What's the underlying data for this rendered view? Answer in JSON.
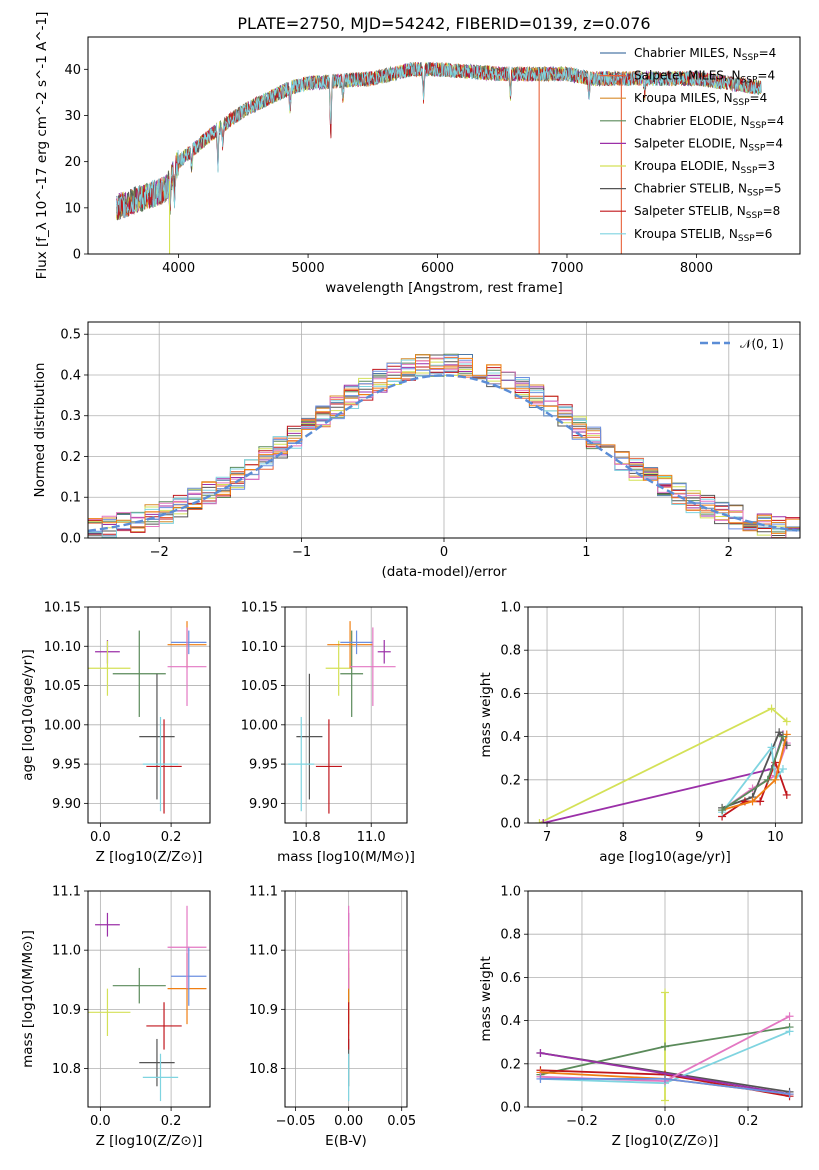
{
  "figure": {
    "title": "PLATE=2750, MJD=54242, FIBERID=0139, z=0.076",
    "colors": {
      "Chabrier MILES": "#4e79a7",
      "Salpeter MILES": "#e8623a",
      "Kroupa MILES": "#d98b2b",
      "Chabrier ELODIE": "#5a8a5a",
      "Salpeter ELODIE": "#9b30a8",
      "Kroupa ELODIE": "#d4e157",
      "Chabrier STELIB": "#555555",
      "Salpeter STELIB": "#c0161c",
      "Kroupa STELIB": "#7fd4e0",
      "normal_curve": "#5b8dd6",
      "pink_extra": "#e377c2",
      "blue_extra": "#6b8fe0",
      "orange_extra": "#f07f12"
    }
  },
  "chart_data": [
    {
      "id": "spectrum",
      "type": "line",
      "title": "PLATE=2750, MJD=54242, FIBERID=0139, z=0.076",
      "xlabel": "wavelength [Angstrom, rest frame]",
      "ylabel": "Flux [f_λ 10^-17 erg cm^-2 s^-1 A^-1]",
      "xlim": [
        3300,
        8800
      ],
      "ylim": [
        0,
        47
      ],
      "xticks": [
        4000,
        5000,
        6000,
        7000,
        8000
      ],
      "yticks": [
        0,
        10,
        20,
        30,
        40
      ],
      "grid": false,
      "legend_position": "top-right",
      "legend": [
        {
          "name": "Chabrier MILES",
          "sub": "SSP",
          "n": "4"
        },
        {
          "name": "Salpeter MILES",
          "sub": "SSP",
          "n": "4"
        },
        {
          "name": "Kroupa MILES",
          "sub": "SSP",
          "n": "4"
        },
        {
          "name": "Chabrier ELODIE",
          "sub": "SSP",
          "n": "4"
        },
        {
          "name": "Salpeter ELODIE",
          "sub": "SSP",
          "n": "4"
        },
        {
          "name": "Kroupa ELODIE",
          "sub": "SSP",
          "n": "3"
        },
        {
          "name": "Chabrier STELIB",
          "sub": "SSP",
          "n": "5"
        },
        {
          "name": "Salpeter STELIB",
          "sub": "SSP",
          "n": "8"
        },
        {
          "name": "Kroupa STELIB",
          "sub": "SSP",
          "n": "6"
        }
      ],
      "continuum": {
        "x": [
          3520,
          3700,
          3900,
          4000,
          4300,
          4500,
          4860,
          5000,
          5500,
          5800,
          6000,
          6500,
          7000,
          7200,
          7500,
          8000,
          8500
        ],
        "y": [
          10,
          12,
          14,
          20,
          27,
          31,
          36,
          37,
          38,
          40,
          40,
          39,
          39,
          38,
          38,
          38,
          36
        ]
      },
      "absorption_lines": [
        {
          "x": 3934,
          "depth": 6
        },
        {
          "x": 3968,
          "depth": 6
        },
        {
          "x": 4101,
          "depth": 4
        },
        {
          "x": 4304,
          "depth": 8
        },
        {
          "x": 4340,
          "depth": 4
        },
        {
          "x": 4861,
          "depth": 5
        },
        {
          "x": 5175,
          "depth": 12
        },
        {
          "x": 5270,
          "depth": 4
        },
        {
          "x": 5892,
          "depth": 6
        },
        {
          "x": 6563,
          "depth": 5
        },
        {
          "x": 7170,
          "depth": 4
        },
        {
          "x": 7600,
          "depth": 4
        }
      ],
      "spikes": [
        {
          "x": 3930,
          "series": "Kroupa ELODIE",
          "to": 0
        },
        {
          "x": 6785,
          "series": "Salpeter MILES",
          "to": 0
        },
        {
          "x": 7420,
          "series": "Salpeter MILES",
          "to": 0
        }
      ]
    },
    {
      "id": "residuals",
      "type": "line",
      "xlabel": "(data-model)/error",
      "ylabel": "Normed distribution",
      "xlim": [
        -2.5,
        2.5
      ],
      "ylim": [
        0,
        0.53
      ],
      "xticks": [
        -2,
        -1,
        0,
        1,
        2
      ],
      "yticks": [
        0.0,
        0.1,
        0.2,
        0.3,
        0.4,
        0.5
      ],
      "grid": true,
      "legend_position": "top-right",
      "legend": [
        "N(0, 1)"
      ],
      "bin_width": 0.1,
      "normal_curve": {
        "mean": 0,
        "sigma": 1
      }
    },
    {
      "id": "age_vs_Z",
      "type": "scatter",
      "xlabel": "Z [log10(Z/Z⊙)]",
      "ylabel": "age [log10(age/yr)]",
      "xlim": [
        -0.035,
        0.31
      ],
      "ylim": [
        9.875,
        10.15
      ],
      "xticks": [
        0.0,
        0.2
      ],
      "yticks": [
        9.9,
        9.95,
        10.0,
        10.05,
        10.1,
        10.15
      ],
      "grid": true,
      "points": [
        {
          "c": "Salpeter ELODIE",
          "x": 0.02,
          "y": 10.093,
          "xe": 0.035,
          "ye": 0.015
        },
        {
          "c": "Kroupa ELODIE",
          "x": 0.02,
          "y": 10.072,
          "xe": 0.065,
          "ye": 0.035
        },
        {
          "c": "Chabrier ELODIE",
          "x": 0.11,
          "y": 10.065,
          "xe": 0.075,
          "ye": 0.055
        },
        {
          "c": "orange_extra",
          "x": 0.245,
          "y": 10.102,
          "xe": 0.055,
          "ye": 0.03
        },
        {
          "c": "blue_extra",
          "x": 0.25,
          "y": 10.105,
          "xe": 0.05,
          "ye": 0.015
        },
        {
          "c": "pink_extra",
          "x": 0.245,
          "y": 10.074,
          "xe": 0.055,
          "ye": 0.05
        },
        {
          "c": "Chabrier STELIB",
          "x": 0.16,
          "y": 9.985,
          "xe": 0.05,
          "ye": 0.08
        },
        {
          "c": "Salpeter STELIB",
          "x": 0.18,
          "y": 9.947,
          "xe": 0.05,
          "ye": 0.06
        },
        {
          "c": "Kroupa STELIB",
          "x": 0.17,
          "y": 9.95,
          "xe": 0.05,
          "ye": 0.06
        }
      ]
    },
    {
      "id": "age_vs_mass",
      "type": "scatter",
      "xlabel": "mass [log10(M/M⊙)]",
      "ylabel": "",
      "xlim": [
        10.735,
        11.11
      ],
      "ylim": [
        9.875,
        10.15
      ],
      "xticks": [
        10.8,
        11.0
      ],
      "yticks": [
        9.9,
        9.95,
        10.0,
        10.05,
        10.1,
        10.15
      ],
      "grid": true,
      "points": [
        {
          "c": "Salpeter ELODIE",
          "x": 11.04,
          "y": 10.093,
          "xe": 0.02,
          "ye": 0.015
        },
        {
          "c": "Kroupa ELODIE",
          "x": 10.9,
          "y": 10.072,
          "xe": 0.04,
          "ye": 0.035
        },
        {
          "c": "Chabrier ELODIE",
          "x": 10.94,
          "y": 10.065,
          "xe": 0.035,
          "ye": 0.055
        },
        {
          "c": "orange_extra",
          "x": 10.935,
          "y": 10.102,
          "xe": 0.07,
          "ye": 0.03
        },
        {
          "c": "blue_extra",
          "x": 10.955,
          "y": 10.105,
          "xe": 0.05,
          "ye": 0.015
        },
        {
          "c": "pink_extra",
          "x": 11.005,
          "y": 10.074,
          "xe": 0.07,
          "ye": 0.05
        },
        {
          "c": "Chabrier STELIB",
          "x": 10.81,
          "y": 9.985,
          "xe": 0.04,
          "ye": 0.08
        },
        {
          "c": "Salpeter STELIB",
          "x": 10.87,
          "y": 9.947,
          "xe": 0.04,
          "ye": 0.06
        },
        {
          "c": "Kroupa STELIB",
          "x": 10.785,
          "y": 9.95,
          "xe": 0.04,
          "ye": 0.06
        }
      ]
    },
    {
      "id": "mass_weight_vs_age",
      "type": "line",
      "xlabel": "age [log10(age/yr)]",
      "ylabel": "mass weight",
      "xlim": [
        6.75,
        10.35
      ],
      "ylim": [
        0,
        1.0
      ],
      "xticks": [
        7,
        8,
        9,
        10
      ],
      "yticks": [
        0.0,
        0.2,
        0.4,
        0.6,
        0.8,
        1.0
      ],
      "grid": true,
      "series": [
        {
          "c": "Kroupa ELODIE",
          "x": [
            6.9,
            9.95,
            10.15
          ],
          "y": [
            0.0,
            0.53,
            0.47
          ]
        },
        {
          "c": "Salpeter ELODIE",
          "x": [
            6.95,
            9.95,
            10.1
          ],
          "y": [
            0.0,
            0.25,
            0.41
          ]
        },
        {
          "c": "pink_extra",
          "x": [
            9.3,
            9.7,
            10.0,
            10.15
          ],
          "y": [
            0.06,
            0.16,
            0.22,
            0.37
          ]
        },
        {
          "c": "Chabrier STELIB",
          "x": [
            9.3,
            9.7,
            10.05,
            10.15
          ],
          "y": [
            0.07,
            0.12,
            0.42,
            0.36
          ]
        },
        {
          "c": "Salpeter STELIB",
          "x": [
            9.3,
            9.6,
            9.8,
            10.0,
            10.15
          ],
          "y": [
            0.03,
            0.1,
            0.1,
            0.28,
            0.13
          ]
        },
        {
          "c": "Kroupa STELIB",
          "x": [
            9.3,
            9.95,
            10.0,
            10.1
          ],
          "y": [
            0.05,
            0.35,
            0.2,
            0.25
          ]
        },
        {
          "c": "orange_extra",
          "x": [
            9.3,
            9.7,
            10.0,
            10.15
          ],
          "y": [
            0.06,
            0.1,
            0.2,
            0.41
          ]
        },
        {
          "c": "Chabrier ELODIE",
          "x": [
            9.3,
            9.9,
            10.1
          ],
          "y": [
            0.06,
            0.2,
            0.4
          ]
        }
      ]
    },
    {
      "id": "mass_vs_Z",
      "type": "scatter",
      "xlabel": "Z [log10(Z/Z⊙)]",
      "ylabel": "mass [log10(M/M⊙)]",
      "xlim": [
        -0.035,
        0.31
      ],
      "ylim": [
        10.735,
        11.1
      ],
      "xticks": [
        0.0,
        0.2
      ],
      "yticks": [
        10.8,
        10.9,
        11.0,
        11.1
      ],
      "grid": true,
      "points": [
        {
          "c": "Salpeter ELODIE",
          "x": 0.02,
          "y": 11.043,
          "xe": 0.035,
          "ye": 0.02
        },
        {
          "c": "Kroupa ELODIE",
          "x": 0.02,
          "y": 10.895,
          "xe": 0.065,
          "ye": 0.04
        },
        {
          "c": "Chabrier ELODIE",
          "x": 0.11,
          "y": 10.94,
          "xe": 0.075,
          "ye": 0.03
        },
        {
          "c": "orange_extra",
          "x": 0.245,
          "y": 10.935,
          "xe": 0.055,
          "ye": 0.06
        },
        {
          "c": "blue_extra",
          "x": 0.25,
          "y": 10.956,
          "xe": 0.05,
          "ye": 0.05
        },
        {
          "c": "pink_extra",
          "x": 0.245,
          "y": 11.005,
          "xe": 0.055,
          "ye": 0.07
        },
        {
          "c": "Chabrier STELIB",
          "x": 0.16,
          "y": 10.81,
          "xe": 0.05,
          "ye": 0.04
        },
        {
          "c": "Salpeter STELIB",
          "x": 0.18,
          "y": 10.872,
          "xe": 0.05,
          "ye": 0.04
        },
        {
          "c": "Kroupa STELIB",
          "x": 0.17,
          "y": 10.785,
          "xe": 0.05,
          "ye": 0.04
        }
      ]
    },
    {
      "id": "mass_vs_EBV",
      "type": "scatter",
      "xlabel": "E(B-V)",
      "ylabel": "",
      "xlim": [
        -0.06,
        0.055
      ],
      "ylim": [
        10.735,
        11.1
      ],
      "xticks": [
        -0.05,
        0.0,
        0.05
      ],
      "yticks": [
        10.8,
        10.9,
        11.0,
        11.1
      ],
      "grid": true,
      "points": [
        {
          "c": "Salpeter ELODIE",
          "x": 0.0,
          "y": 11.043,
          "xe": 0.0,
          "ye": 0.02
        },
        {
          "c": "Kroupa ELODIE",
          "x": 0.0,
          "y": 10.895,
          "xe": 0.0,
          "ye": 0.04
        },
        {
          "c": "Chabrier ELODIE",
          "x": 0.0,
          "y": 10.94,
          "xe": 0.0,
          "ye": 0.03
        },
        {
          "c": "orange_extra",
          "x": 0.0,
          "y": 10.935,
          "xe": 0.0,
          "ye": 0.06
        },
        {
          "c": "pink_extra",
          "x": 0.0,
          "y": 11.005,
          "xe": 0.0,
          "ye": 0.07
        },
        {
          "c": "Chabrier STELIB",
          "x": 0.0,
          "y": 10.81,
          "xe": 0.0,
          "ye": 0.04
        },
        {
          "c": "Salpeter STELIB",
          "x": 0.0,
          "y": 10.872,
          "xe": 0.0,
          "ye": 0.04
        },
        {
          "c": "Kroupa STELIB",
          "x": 0.0,
          "y": 10.785,
          "xe": 0.0,
          "ye": 0.04
        }
      ]
    },
    {
      "id": "mass_weight_vs_Z",
      "type": "line",
      "xlabel": "Z [log10(Z/Z⊙)]",
      "ylabel": "mass weight",
      "xlim": [
        -0.33,
        0.33
      ],
      "ylim": [
        0,
        1.0
      ],
      "xticks": [
        -0.2,
        0.0,
        0.2
      ],
      "yticks": [
        0.0,
        0.2,
        0.4,
        0.6,
        0.8,
        1.0
      ],
      "grid": true,
      "series": [
        {
          "c": "Kroupa ELODIE",
          "x": [
            0.0,
            0.0
          ],
          "y": [
            0.03,
            0.53
          ]
        },
        {
          "c": "Chabrier STELIB",
          "x": [
            -0.3,
            0.3
          ],
          "y": [
            0.25,
            0.07
          ]
        },
        {
          "c": "Chabrier ELODIE",
          "x": [
            -0.3,
            0.0,
            0.3
          ],
          "y": [
            0.15,
            0.28,
            0.37
          ]
        },
        {
          "c": "Kroupa STELIB",
          "x": [
            -0.3,
            0.0,
            0.3
          ],
          "y": [
            0.13,
            0.11,
            0.35
          ]
        },
        {
          "c": "Salpeter STELIB",
          "x": [
            -0.3,
            0.0,
            0.3
          ],
          "y": [
            0.17,
            0.15,
            0.05
          ]
        },
        {
          "c": "orange_extra",
          "x": [
            -0.3,
            0.0,
            0.3
          ],
          "y": [
            0.16,
            0.13,
            0.06
          ]
        },
        {
          "c": "Salpeter ELODIE",
          "x": [
            -0.3,
            0.3
          ],
          "y": [
            0.25,
            0.06
          ]
        },
        {
          "c": "pink_extra",
          "x": [
            -0.3,
            0.0,
            0.3
          ],
          "y": [
            0.14,
            0.12,
            0.42
          ]
        },
        {
          "c": "blue_extra",
          "x": [
            -0.3,
            0.0,
            0.3
          ],
          "y": [
            0.13,
            0.13,
            0.06
          ]
        }
      ]
    }
  ]
}
